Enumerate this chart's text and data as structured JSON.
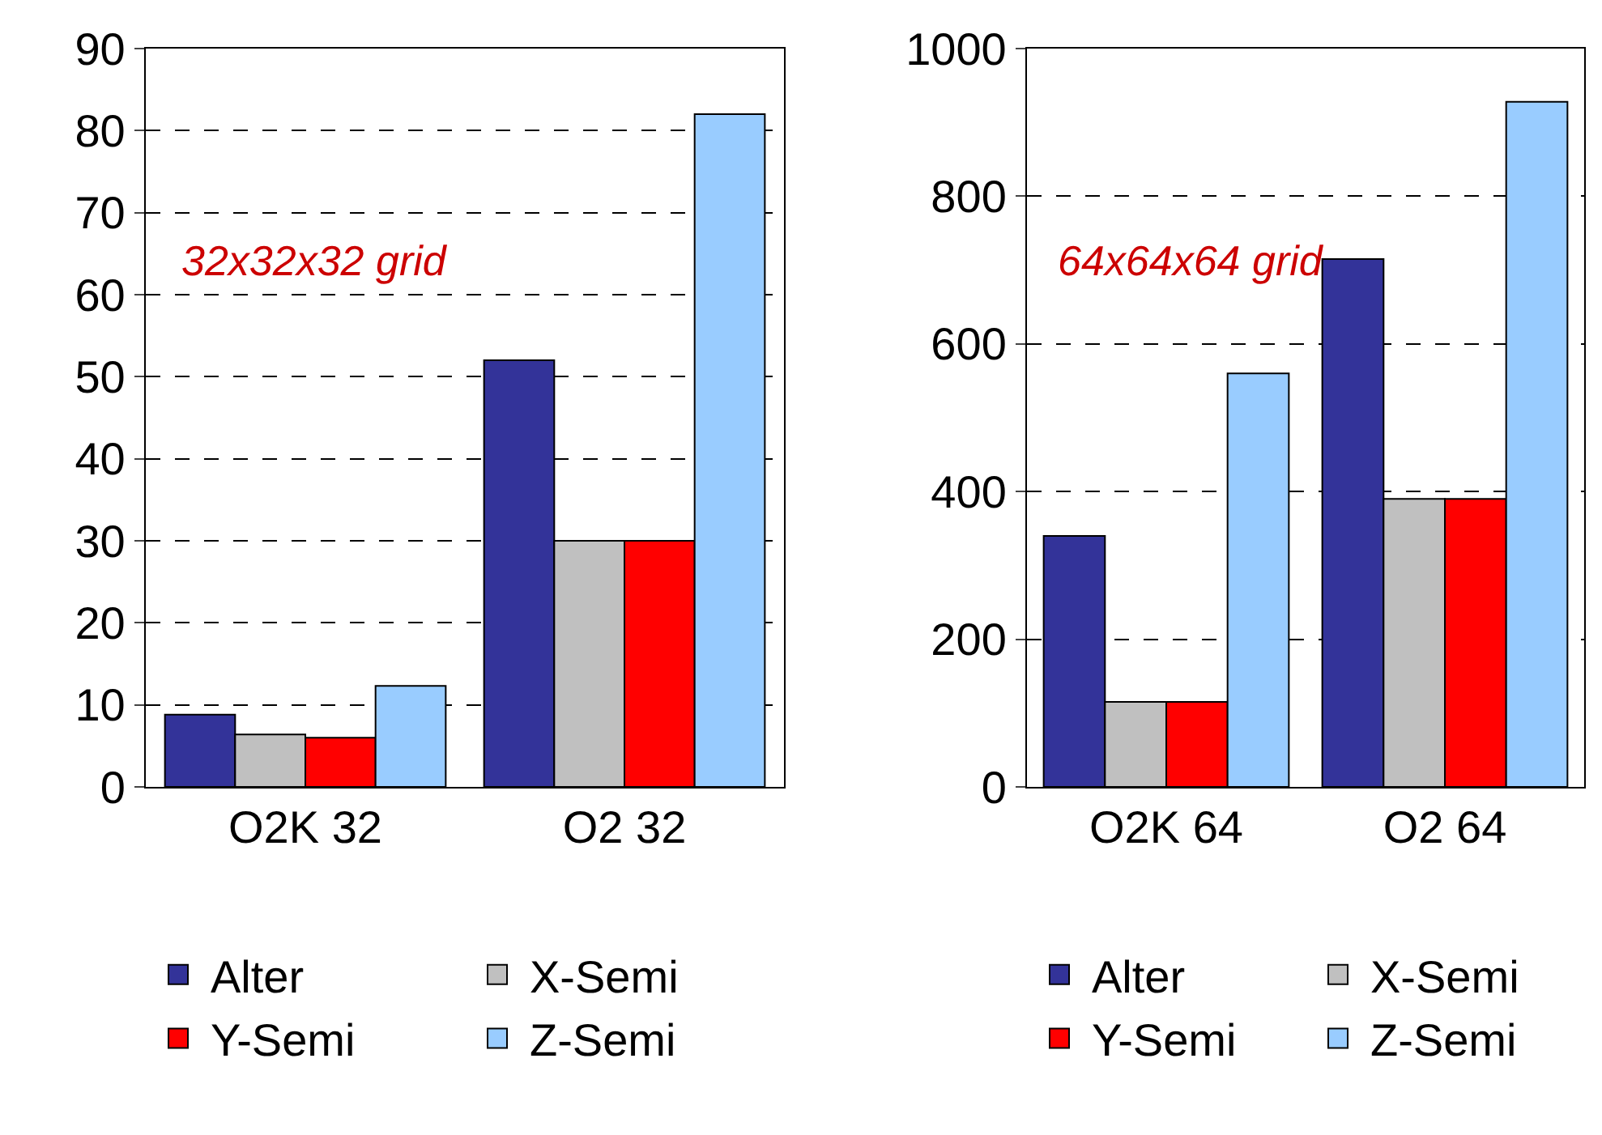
{
  "chart_data": [
    {
      "type": "bar",
      "categories": [
        "O2K 32",
        "O2 32"
      ],
      "ylim": [
        0,
        90
      ],
      "yticks": [
        0,
        10,
        20,
        30,
        40,
        50,
        60,
        70,
        80,
        90
      ],
      "grid": "y",
      "legend": "bottom",
      "annotations": [
        "32x32x32 grid"
      ],
      "series": [
        {
          "name": "Alter",
          "color": "#333399",
          "values": [
            8.8,
            52
          ]
        },
        {
          "name": "X-Semi",
          "color": "#c0c0c0",
          "values": [
            6.4,
            30
          ]
        },
        {
          "name": "Y-Semi",
          "color": "#ff0000",
          "values": [
            6,
            30
          ]
        },
        {
          "name": "Z-Semi",
          "color": "#99ccff",
          "values": [
            12.3,
            82
          ]
        }
      ]
    },
    {
      "type": "bar",
      "categories": [
        "O2K 64",
        "O2 64"
      ],
      "ylim": [
        0,
        1000
      ],
      "yticks": [
        0,
        200,
        400,
        600,
        800,
        1000
      ],
      "grid": "y",
      "legend": "bottom",
      "annotations": [
        "64x64x64 grid"
      ],
      "series": [
        {
          "name": "Alter",
          "color": "#333399",
          "values": [
            340,
            715
          ]
        },
        {
          "name": "X-Semi",
          "color": "#c0c0c0",
          "values": [
            115,
            390
          ]
        },
        {
          "name": "Y-Semi",
          "color": "#ff0000",
          "values": [
            115,
            390
          ]
        },
        {
          "name": "Z-Semi",
          "color": "#99ccff",
          "values": [
            560,
            928
          ]
        }
      ]
    }
  ]
}
